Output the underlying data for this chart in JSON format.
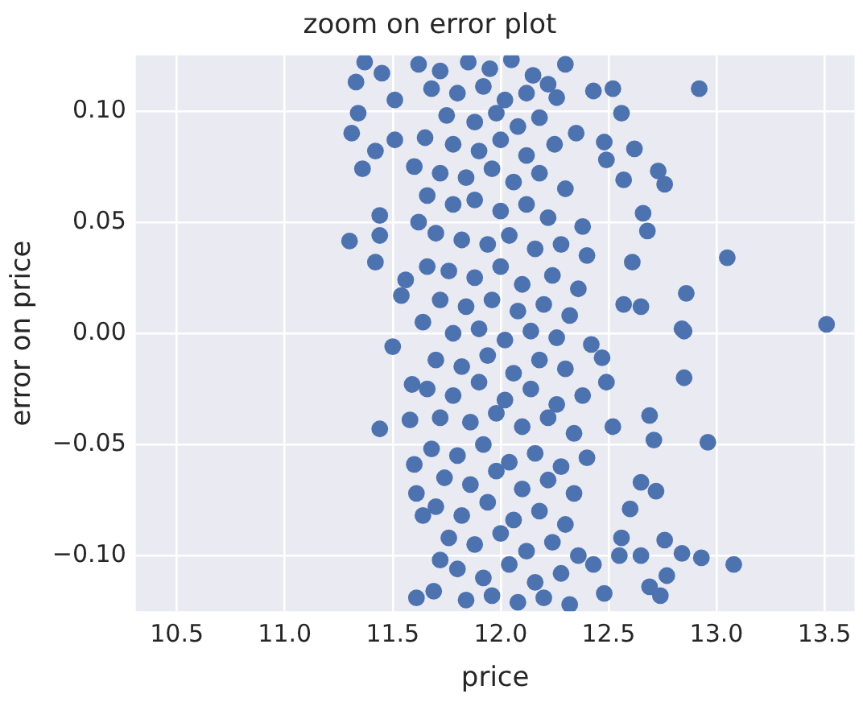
{
  "chart_data": {
    "type": "scatter",
    "title": "zoom on error plot",
    "xlabel": "price",
    "ylabel": "error on price",
    "xlim": [
      10.31,
      13.64
    ],
    "ylim": [
      -0.125,
      0.125
    ],
    "xticks": [
      {
        "value": 10.5,
        "label": "10.5"
      },
      {
        "value": 11,
        "label": "11.0"
      },
      {
        "value": 11.5,
        "label": "11.5"
      },
      {
        "value": 12,
        "label": "12.0"
      },
      {
        "value": 12.5,
        "label": "12.5"
      },
      {
        "value": 13,
        "label": "13.0"
      },
      {
        "value": 13.5,
        "label": "13.5"
      }
    ],
    "yticks": [
      {
        "value": -0.1,
        "label": "−0.10"
      },
      {
        "value": -0.05,
        "label": "−0.05"
      },
      {
        "value": 0,
        "label": "0.00"
      },
      {
        "value": 0.05,
        "label": "0.05"
      },
      {
        "value": 0.1,
        "label": "0.10"
      }
    ],
    "grid": true,
    "marker": "circle",
    "series": [
      {
        "color": "#4c72b0",
        "x": [
          12.92,
          13.51,
          13.05,
          12.86,
          12.84,
          12.76,
          12.73,
          12.62,
          12.57,
          12.66,
          12.68,
          12.61,
          12.65,
          12.57,
          12.52,
          12.43,
          12.56,
          12.48,
          12.49,
          12.3,
          12.26,
          11.3,
          11.42,
          11.36,
          11.31,
          11.33,
          11.37,
          11.34,
          11.42,
          11.44,
          11.44,
          11.51,
          11.51,
          11.45,
          11.54,
          11.56,
          12.85,
          12.85,
          12.96,
          13.08,
          12.69,
          12.71,
          12.52,
          12.49,
          12.47,
          12.65,
          12.72,
          12.6,
          12.76,
          12.84,
          12.93,
          12.56,
          12.77,
          12.69,
          12.74,
          12.55,
          12.65,
          11.44,
          11.5,
          11.6,
          11.61,
          11.64,
          11.72,
          11.69,
          11.61,
          11.58,
          11.59,
          12.48,
          12.43,
          11.62,
          11.72,
          11.85,
          11.95,
          12.05,
          12.15,
          11.68,
          11.8,
          11.92,
          12.02,
          12.12,
          12.22,
          11.75,
          11.88,
          11.98,
          12.08,
          12.18,
          11.65,
          11.78,
          11.9,
          12.0,
          12.12,
          12.25,
          12.35,
          11.6,
          11.72,
          11.84,
          11.96,
          12.06,
          12.18,
          12.3,
          11.66,
          11.78,
          11.88,
          12.0,
          12.12,
          12.22,
          12.38,
          11.62,
          11.7,
          11.82,
          11.94,
          12.04,
          12.16,
          12.28,
          12.4,
          11.66,
          11.76,
          11.88,
          12.0,
          12.1,
          12.24,
          12.36,
          11.72,
          11.84,
          11.96,
          12.08,
          12.2,
          12.32,
          11.64,
          11.78,
          11.9,
          12.02,
          12.14,
          12.26,
          12.42,
          11.7,
          11.82,
          11.94,
          12.06,
          12.18,
          12.3,
          11.66,
          11.78,
          11.9,
          12.02,
          12.14,
          12.26,
          12.38,
          11.72,
          11.86,
          11.98,
          12.1,
          12.22,
          12.34,
          11.68,
          11.8,
          11.92,
          12.04,
          12.16,
          12.28,
          12.4,
          11.74,
          11.86,
          11.98,
          12.1,
          12.22,
          12.34,
          11.7,
          11.82,
          11.94,
          12.06,
          12.18,
          12.3,
          11.76,
          11.88,
          12.0,
          12.12,
          12.24,
          12.36,
          11.8,
          11.92,
          12.04,
          12.16,
          12.28,
          11.84,
          11.96,
          12.08,
          12.2,
          12.32
        ],
        "values": [
          0.11,
          0.004,
          0.034,
          0.018,
          0.002,
          0.067,
          0.073,
          0.083,
          0.069,
          0.054,
          0.046,
          0.032,
          0.012,
          0.013,
          0.11,
          0.109,
          0.099,
          0.086,
          0.078,
          0.121,
          0.106,
          0.0415,
          0.032,
          0.074,
          0.09,
          0.113,
          0.122,
          0.099,
          0.082,
          0.053,
          0.044,
          0.087,
          0.105,
          0.117,
          0.017,
          0.024,
          0.001,
          -0.02,
          -0.049,
          -0.104,
          -0.037,
          -0.048,
          -0.042,
          -0.022,
          -0.011,
          -0.067,
          -0.071,
          -0.079,
          -0.093,
          -0.099,
          -0.101,
          -0.092,
          -0.109,
          -0.114,
          -0.118,
          -0.1,
          -0.1,
          -0.043,
          -0.006,
          -0.059,
          -0.072,
          -0.082,
          -0.102,
          -0.116,
          -0.119,
          -0.039,
          -0.023,
          -0.117,
          -0.104,
          0.121,
          0.118,
          0.122,
          0.119,
          0.123,
          0.116,
          0.11,
          0.108,
          0.111,
          0.105,
          0.108,
          0.112,
          0.098,
          0.095,
          0.099,
          0.093,
          0.097,
          0.088,
          0.085,
          0.082,
          0.087,
          0.08,
          0.085,
          0.09,
          0.075,
          0.072,
          0.07,
          0.074,
          0.068,
          0.072,
          0.065,
          0.062,
          0.058,
          0.06,
          0.055,
          0.058,
          0.052,
          0.048,
          0.05,
          0.045,
          0.042,
          0.04,
          0.044,
          0.038,
          0.04,
          0.035,
          0.03,
          0.028,
          0.025,
          0.03,
          0.022,
          0.026,
          0.02,
          0.015,
          0.012,
          0.015,
          0.01,
          0.013,
          0.008,
          0.005,
          0.0,
          0.002,
          -0.003,
          0.001,
          -0.002,
          -0.005,
          -0.012,
          -0.015,
          -0.01,
          -0.018,
          -0.012,
          -0.016,
          -0.025,
          -0.028,
          -0.022,
          -0.03,
          -0.025,
          -0.032,
          -0.028,
          -0.038,
          -0.04,
          -0.036,
          -0.042,
          -0.038,
          -0.045,
          -0.052,
          -0.055,
          -0.05,
          -0.058,
          -0.054,
          -0.06,
          -0.056,
          -0.065,
          -0.068,
          -0.062,
          -0.07,
          -0.066,
          -0.072,
          -0.078,
          -0.082,
          -0.076,
          -0.084,
          -0.08,
          -0.086,
          -0.092,
          -0.095,
          -0.09,
          -0.098,
          -0.094,
          -0.1,
          -0.106,
          -0.11,
          -0.104,
          -0.112,
          -0.108,
          -0.12,
          -0.118,
          -0.121,
          -0.119,
          -0.122
        ]
      }
    ]
  }
}
